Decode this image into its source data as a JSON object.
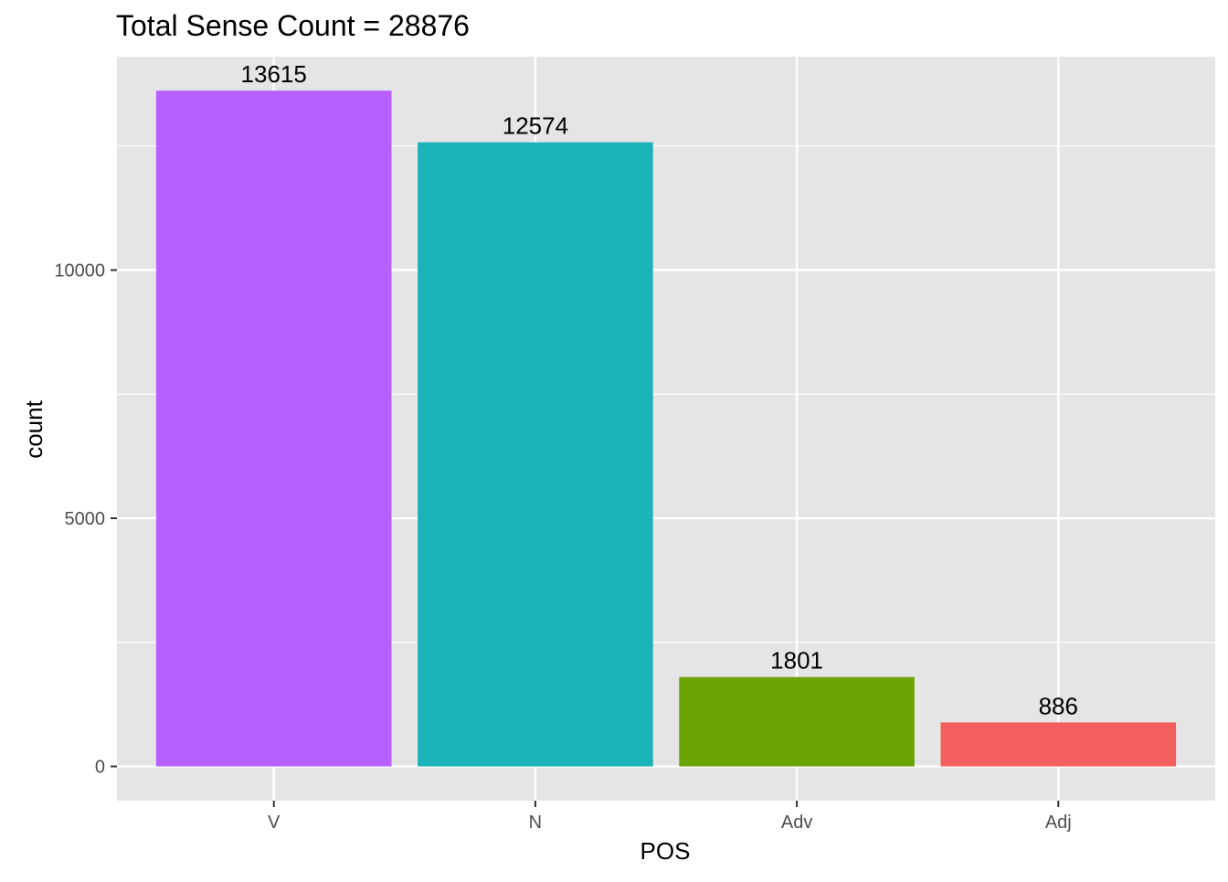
{
  "chart_data": {
    "type": "bar",
    "title": "Total Sense Count = 28876",
    "xlabel": "POS",
    "ylabel": "count",
    "categories": [
      "V",
      "N",
      "Adv",
      "Adj"
    ],
    "values": [
      13615,
      12574,
      1801,
      886
    ],
    "data_labels": [
      "13615",
      "12574",
      "1801",
      "886"
    ],
    "colors": [
      "#B75FFF",
      "#19B3B8",
      "#6BA404",
      "#F35F5C"
    ],
    "ylim": [
      -690,
      14300
    ],
    "y_ticks": [
      0,
      5000,
      10000
    ],
    "y_tick_labels": [
      "0",
      "5000",
      "10000"
    ],
    "y_minor_ticks": [
      2500,
      7500,
      12500
    ],
    "grid": true,
    "legend": "none",
    "panel_background": "#E5E5E5",
    "gridline_color": "#FFFFFF"
  }
}
